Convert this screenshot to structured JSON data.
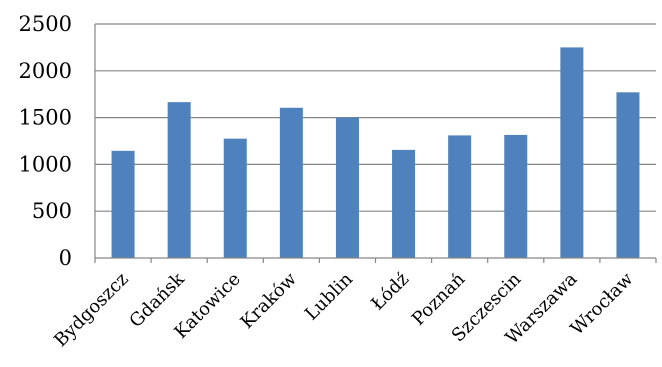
{
  "chart_data": {
    "type": "bar",
    "categories": [
      "Bydgoszcz",
      "Gdańsk",
      "Katowice",
      "Kraków",
      "Lublin",
      "Łódź",
      "Poznań",
      "Szczescin",
      "Warszawa",
      "Wrocław"
    ],
    "values": [
      1145,
      1665,
      1275,
      1605,
      1500,
      1155,
      1310,
      1315,
      2250,
      1770
    ],
    "title": "",
    "xlabel": "",
    "ylabel": "",
    "ylim": [
      0,
      2500
    ],
    "yticks": [
      0,
      500,
      1000,
      1500,
      2000,
      2500
    ],
    "grid": true,
    "legend": "none",
    "bar_color": "#4f81bd",
    "grid_color": "#868686",
    "axis_color": "#868686"
  }
}
